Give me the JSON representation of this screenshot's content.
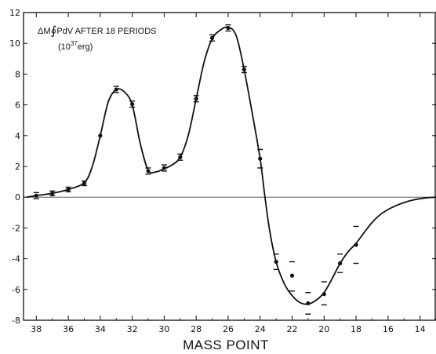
{
  "chart_data": {
    "type": "line",
    "title": "",
    "xlabel": "MASS POINT",
    "ylabel": "",
    "xlim": [
      38.8,
      13.0
    ],
    "ylim": [
      -8,
      12
    ],
    "x_ticks": [
      38,
      36,
      34,
      32,
      30,
      28,
      26,
      24,
      22,
      20,
      18,
      16,
      14
    ],
    "y_ticks": [
      -8,
      -6,
      -4,
      -2,
      0,
      2,
      4,
      6,
      8,
      10,
      12
    ],
    "grid": false,
    "annotation": {
      "line1_prefix": "ΔM",
      "integral_symbol": "∮",
      "line1_suffix": "PdV  AFTER 18 PERIODS",
      "line2_open": "(10",
      "line2_exponent": "37",
      "line2_close": "erg)"
    },
    "series": [
      {
        "kind": "points",
        "x": [
          38,
          37,
          36,
          35,
          34,
          33,
          32,
          31,
          30,
          29,
          28,
          27,
          26,
          25,
          24,
          23,
          22,
          21,
          20,
          19,
          18
        ],
        "y": [
          0.1,
          0.25,
          0.5,
          0.9,
          4.0,
          7.0,
          6.05,
          1.7,
          1.9,
          2.6,
          6.4,
          10.35,
          11.0,
          8.3,
          2.5,
          -4.2,
          -5.1,
          -6.9,
          -6.3,
          -4.3,
          -3.1
        ]
      },
      {
        "kind": "curve",
        "x": [
          38.6,
          38,
          37,
          36,
          35,
          34.5,
          34,
          33.5,
          33,
          32.5,
          32,
          31.5,
          31,
          30.5,
          30,
          29.5,
          29,
          28.5,
          28,
          27.5,
          27,
          26.5,
          26,
          25.5,
          25,
          24.5,
          24,
          23.7,
          23.4,
          23,
          22.5,
          22,
          21.5,
          21,
          20.5,
          20,
          19.5,
          19,
          18.5,
          18,
          17.5,
          17,
          16.5,
          16,
          15.5,
          15,
          14.5,
          14,
          13.5,
          13
        ],
        "y": [
          0.0,
          0.1,
          0.25,
          0.5,
          0.95,
          2.0,
          4.0,
          6.2,
          7.0,
          6.85,
          6.0,
          3.5,
          1.75,
          1.65,
          1.85,
          2.1,
          2.6,
          4.0,
          6.4,
          8.8,
          10.3,
          10.85,
          11.05,
          10.5,
          8.3,
          5.5,
          2.5,
          0.0,
          -2.2,
          -4.2,
          -5.6,
          -6.4,
          -6.85,
          -6.95,
          -6.7,
          -6.2,
          -5.3,
          -4.3,
          -3.55,
          -3.0,
          -2.3,
          -1.65,
          -1.15,
          -0.8,
          -0.55,
          -0.35,
          -0.2,
          -0.1,
          -0.03,
          0.0
        ]
      }
    ],
    "error_marks": [
      {
        "x": 38,
        "y": [
          0.3,
          -0.1
        ]
      },
      {
        "x": 37,
        "y": [
          0.4,
          0.1
        ]
      },
      {
        "x": 36,
        "y": [
          0.65,
          0.35
        ]
      },
      {
        "x": 35,
        "y": [
          1.05,
          0.75
        ]
      },
      {
        "x": 33,
        "y": [
          7.2,
          6.8
        ]
      },
      {
        "x": 32,
        "y": [
          6.25,
          5.85
        ]
      },
      {
        "x": 31,
        "y": [
          1.9,
          1.5
        ]
      },
      {
        "x": 30,
        "y": [
          2.1,
          1.7
        ]
      },
      {
        "x": 29,
        "y": [
          2.8,
          2.4
        ]
      },
      {
        "x": 28,
        "y": [
          6.6,
          6.2
        ]
      },
      {
        "x": 27,
        "y": [
          10.55,
          10.15
        ]
      },
      {
        "x": 26,
        "y": [
          11.2,
          10.8
        ]
      },
      {
        "x": 25,
        "y": [
          8.5,
          8.1
        ]
      },
      {
        "x": 24,
        "y": [
          3.1,
          1.9
        ]
      },
      {
        "x": 23,
        "y": [
          -3.7,
          -4.7
        ]
      },
      {
        "x": 22,
        "y": [
          -4.2,
          -6.1
        ]
      },
      {
        "x": 21,
        "y": [
          -6.2,
          -7.6
        ]
      },
      {
        "x": 20,
        "y": [
          -5.5,
          -7.0
        ]
      },
      {
        "x": 19,
        "y": [
          -3.7,
          -4.9
        ]
      },
      {
        "x": 18,
        "y": [
          -1.9,
          -4.3
        ]
      }
    ]
  }
}
